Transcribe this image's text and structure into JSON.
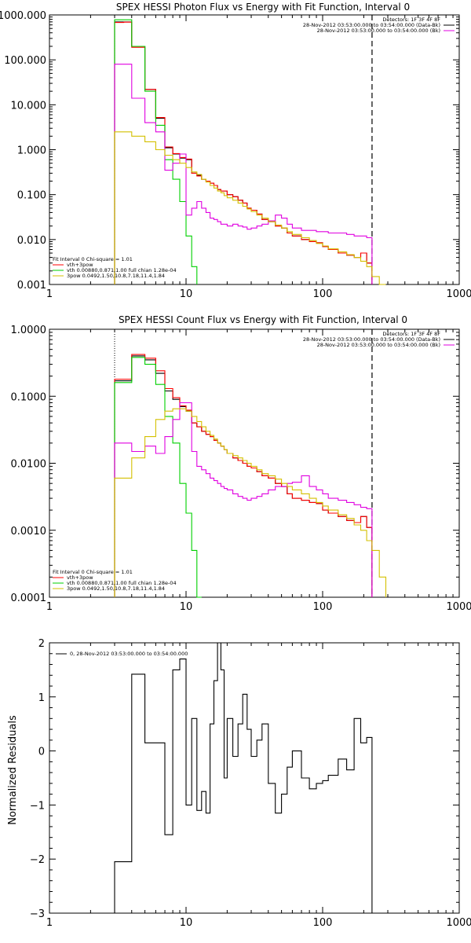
{
  "chart_data": [
    {
      "type": "line",
      "title": "SPEX HESSI Photon Flux vs Energy with Fit Function, Interval 0",
      "xscale": "log",
      "yscale": "log",
      "xlim": [
        1,
        1000
      ],
      "ylim": [
        0.001,
        1000
      ],
      "x_ticks": [
        "1",
        "10",
        "100",
        "1000"
      ],
      "y_ticks": [
        "0.001",
        "0.010",
        "0.100",
        "1.000",
        "10.000",
        "100.000",
        "1000.000"
      ],
      "legend_right": [
        "Detectors: 1F 3F 4F 8F",
        "28-Nov-2012 03:53:00.000 to 03:54:00.000 (Data-Bk)",
        "28-Nov-2012 03:53:00.000 to 03:54:00.000 (Bk)"
      ],
      "legend_left": [
        "Fit Interval 0   Chi-square = 1.01",
        "vth+3pow",
        "vth 0.00880,0.871,1.00  full chian 1.28e-04",
        "3pow 0.0492,1.50,10.8,7.18,11.4,1.84"
      ],
      "vlines": [
        3,
        230
      ],
      "edges": [
        3,
        3.5,
        4,
        4.5,
        5,
        5.5,
        6,
        6.5,
        7,
        7.5,
        8,
        8.5,
        9,
        9.5,
        10,
        10.5,
        11,
        12,
        13,
        14,
        15,
        16,
        17,
        18,
        19,
        20,
        22,
        24,
        26,
        28,
        30,
        33,
        36,
        40,
        45,
        50,
        55,
        60,
        70,
        80,
        90,
        100,
        110,
        130,
        150,
        170,
        190,
        210,
        230,
        260,
        290
      ],
      "series": [
        {
          "color": "#000000",
          "values": [
            700,
            700,
            200,
            200,
            22,
            22,
            5,
            5,
            1.1,
            1.1,
            0.8,
            0.8,
            0.65,
            0.65,
            0.6,
            0.6,
            0.3,
            0.27,
            0.22,
            0.2,
            0.18,
            0.16,
            0.13,
            0.12,
            0.12,
            0.1,
            0.09,
            0.075,
            0.065,
            0.05,
            0.045,
            0.037,
            0.028,
            0.025,
            0.02,
            0.018,
            0.014,
            0.012,
            0.01,
            0.009,
            0.0085,
            0.007,
            0.006,
            0.005,
            0.0045,
            0.004,
            0.005,
            0.003,
            null,
            null
          ]
        },
        {
          "color": "#ff0000",
          "values": [
            680,
            690,
            190,
            190,
            22,
            22,
            5.2,
            5.2,
            1.15,
            1.15,
            0.82,
            0.82,
            0.67,
            0.67,
            0.62,
            0.62,
            0.3,
            0.26,
            0.22,
            0.2,
            0.18,
            0.16,
            0.13,
            0.12,
            0.12,
            0.1,
            0.09,
            0.075,
            0.065,
            0.05,
            0.045,
            0.037,
            0.028,
            0.025,
            0.02,
            0.018,
            0.014,
            0.012,
            0.01,
            0.009,
            0.0085,
            0.007,
            0.006,
            0.005,
            0.0045,
            0.004,
            0.005,
            0.003,
            null,
            null
          ]
        },
        {
          "color": "#00d000",
          "values": [
            780,
            780,
            200,
            200,
            20,
            20,
            3.5,
            3.5,
            0.6,
            0.6,
            0.22,
            0.22,
            0.07,
            0.07,
            0.012,
            0.012,
            0.0025,
            null,
            null,
            null,
            null,
            null,
            null,
            null,
            null,
            null,
            null,
            null,
            null,
            null,
            null,
            null,
            null,
            null,
            null,
            null,
            null,
            null,
            null,
            null,
            null,
            null,
            null,
            null,
            null,
            null,
            null,
            null,
            null,
            null
          ]
        },
        {
          "color": "#e000e0",
          "values": [
            80,
            80,
            14,
            14,
            4,
            4,
            2.5,
            2.5,
            0.35,
            0.35,
            0.5,
            0.5,
            0.8,
            0.8,
            0.035,
            0.035,
            0.05,
            0.07,
            0.05,
            0.04,
            0.03,
            0.028,
            0.025,
            0.022,
            0.022,
            0.02,
            0.022,
            0.02,
            0.019,
            0.017,
            0.018,
            0.02,
            0.022,
            0.026,
            0.035,
            0.03,
            0.022,
            0.018,
            0.016,
            0.016,
            0.015,
            0.015,
            0.014,
            0.014,
            0.013,
            0.012,
            0.012,
            0.011,
            null,
            null
          ]
        },
        {
          "color": "#d4c000",
          "values": [
            2.5,
            2.5,
            2.0,
            2.0,
            1.5,
            1.5,
            1.0,
            1.0,
            0.75,
            0.75,
            0.6,
            0.6,
            0.5,
            0.5,
            0.4,
            0.4,
            0.32,
            0.28,
            0.22,
            0.19,
            0.16,
            0.14,
            0.12,
            0.11,
            0.095,
            0.085,
            0.075,
            0.065,
            0.055,
            0.048,
            0.042,
            0.035,
            0.03,
            0.025,
            0.021,
            0.018,
            0.015,
            0.013,
            0.011,
            0.0095,
            0.0082,
            0.0072,
            0.0062,
            0.0053,
            0.0046,
            0.004,
            0.0033,
            0.0025,
            0.0015,
            0.001
          ]
        }
      ]
    },
    {
      "type": "line",
      "title": "SPEX HESSI Count Flux vs Energy with Fit Function, Interval 0",
      "xscale": "log",
      "yscale": "log",
      "xlim": [
        1,
        1000
      ],
      "ylim": [
        0.0001,
        1
      ],
      "x_ticks": [
        "1",
        "10",
        "100",
        "1000"
      ],
      "y_ticks": [
        "0.0001",
        "0.0010",
        "0.0100",
        "0.1000",
        "1.0000"
      ],
      "legend_right": [
        "Detectors: 1F 3F 4F 8F",
        "28-Nov-2012 03:53:00.000 to 03:54:00.000 (Data-Bk)",
        "28-Nov-2012 03:53:00.000 to 03:54:00.000 (Bk)"
      ],
      "legend_left": [
        "Fit Interval 0   Chi-square = 1.01",
        "vth+3pow",
        "vth 0.00880,0.871,1.00  full chian 1.28e-04",
        "3pow 0.0492,1.50,10.8,7.18,11.4,1.84"
      ],
      "vlines": [
        3,
        230
      ],
      "edges": [
        3,
        3.5,
        4,
        4.5,
        5,
        5.5,
        6,
        6.5,
        7,
        7.5,
        8,
        8.5,
        9,
        9.5,
        10,
        10.5,
        11,
        12,
        13,
        14,
        15,
        16,
        17,
        18,
        19,
        20,
        22,
        24,
        26,
        28,
        30,
        33,
        36,
        40,
        45,
        50,
        55,
        60,
        70,
        80,
        90,
        100,
        110,
        130,
        150,
        170,
        190,
        210,
        230,
        260,
        290
      ],
      "series": [
        {
          "color": "#000000",
          "values": [
            0.17,
            0.17,
            0.4,
            0.4,
            0.35,
            0.35,
            0.22,
            0.22,
            0.12,
            0.12,
            0.09,
            0.09,
            0.07,
            0.07,
            0.06,
            0.06,
            0.04,
            0.035,
            0.03,
            0.027,
            0.025,
            0.022,
            0.02,
            0.018,
            0.016,
            0.014,
            0.012,
            0.011,
            0.01,
            0.009,
            0.0085,
            0.0075,
            0.0065,
            0.006,
            0.005,
            0.0045,
            0.0035,
            0.003,
            0.0028,
            0.0026,
            0.0025,
            0.002,
            0.0018,
            0.0016,
            0.0014,
            0.0013,
            0.0016,
            0.0011,
            null,
            null
          ]
        },
        {
          "color": "#ff0000",
          "values": [
            0.18,
            0.18,
            0.42,
            0.42,
            0.37,
            0.37,
            0.24,
            0.24,
            0.13,
            0.13,
            0.095,
            0.095,
            0.072,
            0.072,
            0.062,
            0.062,
            0.04,
            0.035,
            0.03,
            0.027,
            0.025,
            0.022,
            0.02,
            0.018,
            0.016,
            0.014,
            0.012,
            0.011,
            0.01,
            0.009,
            0.0085,
            0.0075,
            0.0065,
            0.006,
            0.005,
            0.0045,
            0.0035,
            0.003,
            0.0028,
            0.0026,
            0.0025,
            0.002,
            0.0018,
            0.0016,
            0.0014,
            0.0013,
            0.0016,
            0.0011,
            null,
            null
          ]
        },
        {
          "color": "#00d000",
          "values": [
            0.16,
            0.16,
            0.38,
            0.38,
            0.3,
            0.3,
            0.15,
            0.15,
            0.05,
            0.05,
            0.02,
            0.02,
            0.005,
            0.005,
            0.0018,
            0.0018,
            0.0005,
            0.0001,
            null,
            null,
            null,
            null,
            null,
            null,
            null,
            null,
            null,
            null,
            null,
            null,
            null,
            null,
            null,
            null,
            null,
            null,
            null,
            null,
            null,
            null,
            null,
            null,
            null,
            null,
            null,
            null,
            null,
            null,
            null,
            null
          ]
        },
        {
          "color": "#e000e0",
          "values": [
            0.02,
            0.02,
            0.015,
            0.015,
            0.018,
            0.018,
            0.014,
            0.014,
            0.025,
            0.025,
            0.045,
            0.045,
            0.08,
            0.08,
            0.08,
            0.08,
            0.015,
            0.009,
            0.008,
            0.007,
            0.006,
            0.0055,
            0.005,
            0.0045,
            0.0042,
            0.004,
            0.0035,
            0.0032,
            0.003,
            0.0028,
            0.003,
            0.0032,
            0.0035,
            0.004,
            0.0045,
            0.0045,
            0.005,
            0.0052,
            0.0065,
            0.0045,
            0.004,
            0.0035,
            0.003,
            0.0028,
            0.0026,
            0.0024,
            0.0022,
            0.0021,
            null,
            null
          ]
        },
        {
          "color": "#d4c000",
          "values": [
            0.006,
            0.006,
            0.012,
            0.012,
            0.025,
            0.025,
            0.045,
            0.045,
            0.06,
            0.06,
            0.065,
            0.065,
            0.065,
            0.065,
            0.06,
            0.06,
            0.05,
            0.042,
            0.035,
            0.03,
            0.026,
            0.023,
            0.02,
            0.018,
            0.016,
            0.014,
            0.013,
            0.012,
            0.011,
            0.01,
            0.009,
            0.008,
            0.007,
            0.0065,
            0.0058,
            0.005,
            0.0045,
            0.004,
            0.0035,
            0.003,
            0.0026,
            0.0023,
            0.002,
            0.0017,
            0.0015,
            0.0012,
            0.001,
            0.0007,
            0.0005,
            0.0002
          ]
        }
      ]
    },
    {
      "type": "line",
      "title": "",
      "xscale": "log",
      "xlim": [
        1,
        1000
      ],
      "ylim": [
        -3,
        2
      ],
      "ylabel": "Normalized Residuals",
      "x_ticks": [
        "1",
        "10",
        "100",
        "1000"
      ],
      "y_ticks": [
        "−3",
        "−2",
        "−1",
        "0",
        "1",
        "2"
      ],
      "legend": "0, 28-Nov-2012 03:53:00.000 to 03:54:00.000",
      "edges": [
        3,
        3.5,
        4,
        4.5,
        5,
        5.5,
        6,
        6.5,
        7,
        7.5,
        8,
        8.5,
        9,
        9.5,
        10,
        10.5,
        11,
        12,
        13,
        14,
        15,
        16,
        17,
        18,
        19,
        20,
        22,
        24,
        26,
        28,
        30,
        33,
        36,
        40,
        45,
        50,
        55,
        60,
        70,
        80,
        90,
        100,
        110,
        130,
        150,
        170,
        190,
        210,
        230
      ],
      "series": [
        {
          "color": "#000000",
          "values": [
            -2.05,
            -2.05,
            1.42,
            1.42,
            0.15,
            0.15,
            0.15,
            0.15,
            -1.55,
            -1.55,
            1.5,
            1.5,
            1.7,
            1.7,
            -1.0,
            -1.0,
            0.6,
            -1.1,
            -0.75,
            -1.15,
            0.5,
            1.3,
            2.0,
            1.5,
            -0.5,
            0.6,
            -0.1,
            0.5,
            1.05,
            0.4,
            -0.1,
            0.2,
            0.5,
            -0.6,
            -1.15,
            -0.8,
            -0.3,
            0.0,
            -0.5,
            -0.7,
            -0.6,
            -0.55,
            -0.45,
            -0.15,
            -0.35,
            0.6,
            0.15,
            0.25,
            null
          ]
        }
      ]
    }
  ]
}
